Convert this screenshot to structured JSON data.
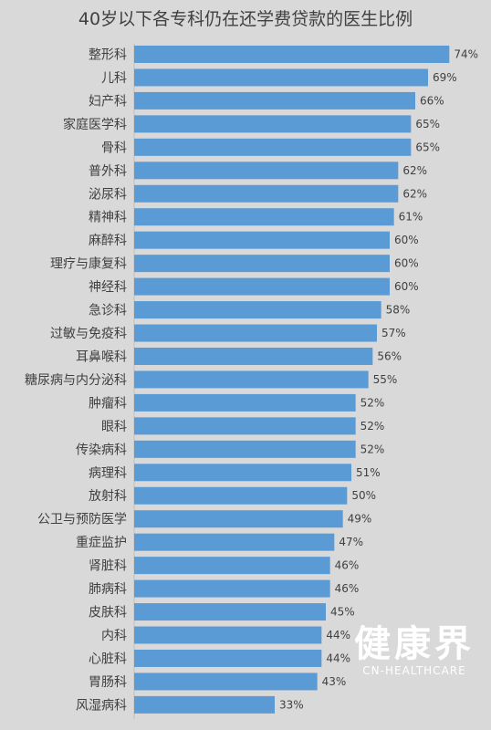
{
  "chart_data": {
    "type": "bar",
    "orientation": "horizontal",
    "title": "40岁以下各专科仍在还学费贷款的医生比例",
    "xlabel": "",
    "ylabel": "",
    "xlim": [
      0,
      75
    ],
    "grid": false,
    "legend": "none",
    "categories": [
      "整形科",
      "儿科",
      "妇产科",
      "家庭医学科",
      "骨科",
      "普外科",
      "泌尿科",
      "精神科",
      "麻醉科",
      "理疗与康复科",
      "神经科",
      "急诊科",
      "过敏与免疫科",
      "耳鼻喉科",
      "糖尿病与内分泌科",
      "肿瘤科",
      "眼科",
      "传染病科",
      "病理科",
      "放射科",
      "公卫与预防医学",
      "重症监护",
      "肾脏科",
      "肺病科",
      "皮肤科",
      "内科",
      "心脏科",
      "胃肠科",
      "风湿病科"
    ],
    "values": [
      74,
      69,
      66,
      65,
      65,
      62,
      62,
      61,
      60,
      60,
      60,
      58,
      57,
      56,
      55,
      52,
      52,
      52,
      51,
      50,
      49,
      47,
      46,
      46,
      45,
      44,
      44,
      43,
      33
    ],
    "value_labels": [
      "74%",
      "69%",
      "66%",
      "65%",
      "65%",
      "62%",
      "62%",
      "61%",
      "60%",
      "60%",
      "60%",
      "58%",
      "57%",
      "56%",
      "55%",
      "52%",
      "52%",
      "52%",
      "51%",
      "50%",
      "49%",
      "47%",
      "46%",
      "46%",
      "45%",
      "44%",
      "44%",
      "43%",
      "33%"
    ],
    "bar_color": "#5b9bd5"
  },
  "watermark": {
    "logo_text": "健康界",
    "sub_text": "CN-HEALTHCARE"
  }
}
